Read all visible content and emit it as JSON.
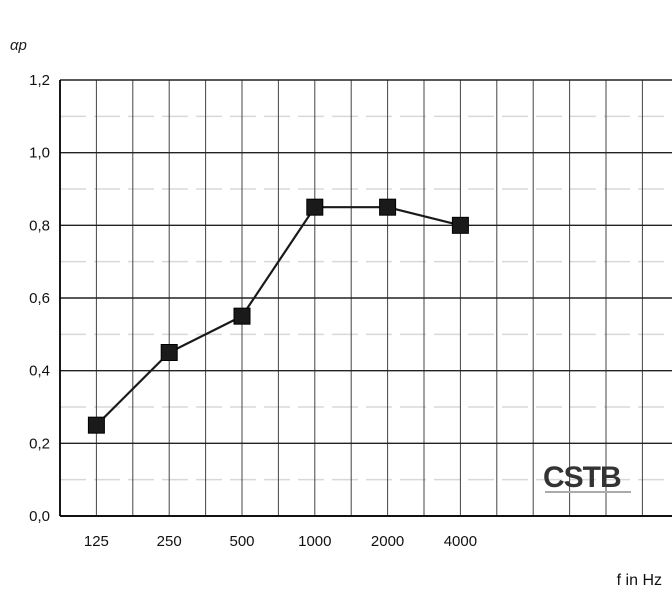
{
  "chart_data": {
    "type": "line",
    "ylabel": "αp",
    "xlabel": "f in Hz",
    "categories": [
      "125",
      "250",
      "500",
      "1000",
      "2000",
      "4000"
    ],
    "series": [
      {
        "values": [
          0.25,
          0.45,
          0.55,
          0.85,
          0.85,
          0.8
        ]
      }
    ],
    "ylim": [
      0,
      1.2
    ],
    "yticks": [
      "0,0",
      "0,2",
      "0,4",
      "0,6",
      "0,8",
      "1,0",
      "1,2"
    ],
    "grid": true,
    "marker": "square",
    "line_color": "#1a1a1a"
  },
  "logo": {
    "text": "CSTB"
  }
}
